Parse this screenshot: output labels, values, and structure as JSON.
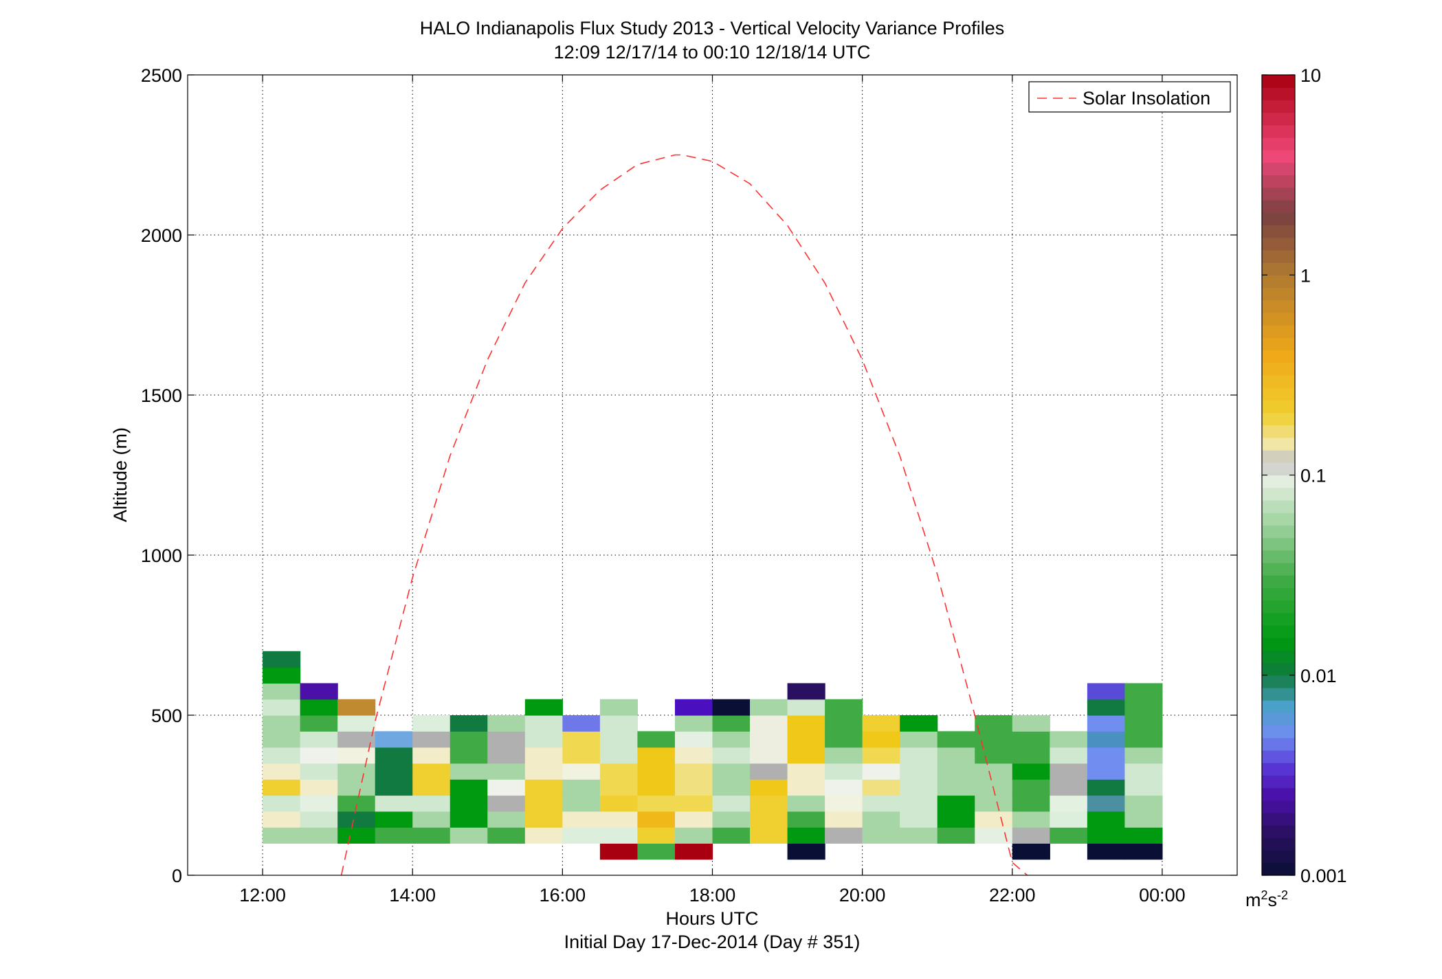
{
  "chart_data": {
    "type": "heatmap",
    "title": "HALO Indianapolis Flux Study 2013 - Vertical Velocity Variance Profiles",
    "subtitle": "12:09 12/17/14 to 00:10 12/18/14  UTC",
    "xlabel": "Hours UTC",
    "xlabel2": "Initial Day 17-Dec-2014 (Day # 351)",
    "ylabel": "Altitude (m)",
    "xlim": [
      11.0,
      25.0
    ],
    "ylim": [
      0,
      2500
    ],
    "x_ticks": [
      12,
      14,
      16,
      18,
      20,
      22,
      24
    ],
    "x_tick_labels": [
      "12:00",
      "14:00",
      "16:00",
      "18:00",
      "20:00",
      "22:00",
      "00:00"
    ],
    "y_ticks": [
      0,
      500,
      1000,
      1500,
      2000,
      2500
    ],
    "y_tick_labels": [
      "0",
      "500",
      "1000",
      "1500",
      "2000",
      "2500"
    ],
    "grid": true,
    "colorbar": {
      "scale": "log",
      "range": [
        0.001,
        10
      ],
      "ticks": [
        0.001,
        0.01,
        0.1,
        1,
        10
      ],
      "tick_labels": [
        "0.001",
        "0.01",
        "0.1",
        "1",
        "10"
      ],
      "unit_base": "m",
      "unit_exp1": "2",
      "unit_mid": "s",
      "unit_exp2": "-2",
      "stops": [
        {
          "v": 0.001,
          "c": "#0a0f35"
        },
        {
          "v": 0.0016,
          "c": "#2a1060"
        },
        {
          "v": 0.0025,
          "c": "#4a10a8"
        },
        {
          "v": 0.0035,
          "c": "#5a38d8"
        },
        {
          "v": 0.005,
          "c": "#6f8ef0"
        },
        {
          "v": 0.007,
          "c": "#4aa0c8"
        },
        {
          "v": 0.01,
          "c": "#107a40"
        },
        {
          "v": 0.015,
          "c": "#009a10"
        },
        {
          "v": 0.03,
          "c": "#40aa45"
        },
        {
          "v": 0.06,
          "c": "#a6d6a6"
        },
        {
          "v": 0.1,
          "c": "#eef2ea"
        },
        {
          "v": 0.118,
          "c": "#b0b0b0"
        },
        {
          "v": 0.13,
          "c": "#f2ecc8"
        },
        {
          "v": 0.2,
          "c": "#f0d030"
        },
        {
          "v": 0.4,
          "c": "#f0a818"
        },
        {
          "v": 1,
          "c": "#b07a30"
        },
        {
          "v": 2,
          "c": "#7a4040"
        },
        {
          "v": 4,
          "c": "#f04878"
        },
        {
          "v": 10,
          "c": "#a80010"
        }
      ]
    },
    "legend": {
      "position": "top-right",
      "entries": [
        "Solar Insolation"
      ]
    },
    "series": [
      {
        "name": "Solar Insolation",
        "style": "dashed",
        "color": "#ff3030",
        "x": [
          13.05,
          13.5,
          14.0,
          14.5,
          15.0,
          15.5,
          16.0,
          16.5,
          17.0,
          17.5,
          17.6,
          18.0,
          18.5,
          19.0,
          19.5,
          20.0,
          20.5,
          21.0,
          21.5,
          22.0,
          22.2
        ],
        "y": [
          0,
          480,
          930,
          1310,
          1610,
          1850,
          2020,
          2140,
          2220,
          2250,
          2250,
          2230,
          2160,
          2030,
          1850,
          1610,
          1310,
          940,
          500,
          40,
          0
        ]
      }
    ],
    "cell_width_hours": 0.5,
    "cell_height_m": 50,
    "columns": [
      {
        "x": 12.25,
        "z0": 100,
        "cells": [
          "#a6d6a6",
          "#f2ecc8",
          "#cfe8cf",
          "#f0d030",
          "#f2ecc8",
          "#cfe8cf",
          "#a6d6a6",
          "#a6d6a6",
          "#cfe8cf",
          "#a6d6a6",
          "#009a10",
          "#107a40"
        ]
      },
      {
        "x": 12.75,
        "z0": 100,
        "cells": [
          "#a6d6a6",
          "#cfe8cf",
          "#e4f0e2",
          "#f2ecc8",
          "#cfe8cf",
          "#eef2ea",
          "#cfe8cf",
          "#40aa45",
          "#009a10",
          "#4a10a8"
        ]
      },
      {
        "x": 13.25,
        "z0": 100,
        "cells": [
          "#009a10",
          "#107a40",
          "#40aa45",
          "#a6d6a6",
          "#a6d6a6",
          "#f2f2e0",
          "#b0b0b0",
          "#dceedc",
          "#c08a30"
        ]
      },
      {
        "x": 13.75,
        "z0": 100,
        "cells": [
          "#40aa45",
          "#009a10",
          "#cfe8cf",
          "#107a40",
          "#107a40",
          "#107a40",
          "#6fa8e0"
        ]
      },
      {
        "x": 14.25,
        "z0": 100,
        "cells": [
          "#40aa45",
          "#a6d6a6",
          "#cfe8cf",
          "#f0d030",
          "#f0d030",
          "#f2ecc8",
          "#b0b0b0",
          "#dceedc"
        ]
      },
      {
        "x": 14.75,
        "z0": 100,
        "cells": [
          "#a6d6a6",
          "#009a10",
          "#009a10",
          "#009a10",
          "#a6d6a6",
          "#40aa45",
          "#40aa45",
          "#107a40"
        ]
      },
      {
        "x": 15.25,
        "z0": 100,
        "cells": [
          "#40aa45",
          "#a6d6a6",
          "#b0b0b0",
          "#eef2ea",
          "#a6d6a6",
          "#b0b0b0",
          "#b0b0b0",
          "#a6d6a6"
        ]
      },
      {
        "x": 15.75,
        "z0": 100,
        "cells": [
          "#f2ecc8",
          "#f0d030",
          "#f0d030",
          "#f0d030",
          "#f2ecc8",
          "#f2ecc8",
          "#cfe8cf",
          "#cfe8cf",
          "#009a10"
        ]
      },
      {
        "x": 16.25,
        "z0": 100,
        "cells": [
          "#dceedc",
          "#f2ecc8",
          "#a6d6a6",
          "#a6d6a6",
          "#f2f2e0",
          "#f0d850",
          "#f0d850",
          "#6f78e8"
        ]
      },
      {
        "x": 16.75,
        "z0": 50,
        "cells": [
          "#a80010",
          "#dceedc",
          "#f2ecc8",
          "#f0d030",
          "#f0d850",
          "#f0d850",
          "#cfe8cf",
          "#cfe8cf",
          "#cfe8cf",
          "#a6d6a6"
        ]
      },
      {
        "x": 17.25,
        "z0": 50,
        "cells": [
          "#40aa45",
          "#f0d030",
          "#f0b818",
          "#f0d850",
          "#f0c818",
          "#f0c818",
          "#f0c818",
          "#40aa45"
        ]
      },
      {
        "x": 17.75,
        "z0": 50,
        "cells": [
          "#a80010",
          "#a6d6a6",
          "#f2ecc8",
          "#f0d850",
          "#f0e080",
          "#f0e080",
          "#f2ecc8",
          "#e4f0e2",
          "#a6d6a6",
          "#4a10c0"
        ]
      },
      {
        "x": 18.25,
        "z0": 100,
        "cells": [
          "#40aa45",
          "#a6d6a6",
          "#cfe8cf",
          "#a6d6a6",
          "#a6d6a6",
          "#cfe8cf",
          "#a6d6a6",
          "#40aa45",
          "#0a0f35"
        ]
      },
      {
        "x": 18.75,
        "z0": 100,
        "cells": [
          "#f0d030",
          "#f0d030",
          "#f0d030",
          "#f0c818",
          "#b0b0b0",
          "#eeeee0",
          "#eeeee0",
          "#eeeee0",
          "#a6d6a6"
        ]
      },
      {
        "x": 19.25,
        "z0": 50,
        "cells": [
          "#0a0f35",
          "#009a10",
          "#40aa45",
          "#a6d6a6",
          "#f2ecc8",
          "#f2ecc8",
          "#f0c818",
          "#f0c818",
          "#f0c818",
          "#cfe8cf",
          "#2a1060"
        ]
      },
      {
        "x": 19.75,
        "z0": 100,
        "cells": [
          "#b0b0b0",
          "#f2ecc8",
          "#f2f2e0",
          "#eef2ea",
          "#cfe8cf",
          "#a6d6a6",
          "#40aa45",
          "#40aa45",
          "#40aa45"
        ]
      },
      {
        "x": 20.25,
        "z0": 100,
        "cells": [
          "#a6d6a6",
          "#a6d6a6",
          "#cfe8cf",
          "#f0e080",
          "#eef2ea",
          "#f0d850",
          "#f0c818",
          "#f0d030"
        ]
      },
      {
        "x": 20.75,
        "z0": 100,
        "cells": [
          "#a6d6a6",
          "#cfe8cf",
          "#cfe8cf",
          "#cfe8cf",
          "#cfe8cf",
          "#cfe8cf",
          "#a6d6a6",
          "#009a10"
        ]
      },
      {
        "x": 21.25,
        "z0": 100,
        "cells": [
          "#40aa45",
          "#009a10",
          "#009a10",
          "#a6d6a6",
          "#a6d6a6",
          "#a6d6a6",
          "#40aa45"
        ]
      },
      {
        "x": 21.75,
        "z0": 100,
        "cells": [
          "#e4f0e2",
          "#f2ecc8",
          "#a6d6a6",
          "#a6d6a6",
          "#a6d6a6",
          "#40aa45",
          "#40aa45",
          "#40aa45"
        ]
      },
      {
        "x": 22.25,
        "z0": 50,
        "cells": [
          "#0a0f35",
          "#b0b0b0",
          "#a6d6a6",
          "#40aa45",
          "#40aa45",
          "#009a10",
          "#40aa45",
          "#40aa45",
          "#a6d6a6"
        ]
      },
      {
        "x": 22.75,
        "z0": 100,
        "cells": [
          "#40aa45",
          "#dceedc",
          "#e4f0e2",
          "#b0b0b0",
          "#b0b0b0",
          "#cfe8cf",
          "#a6d6a6"
        ]
      },
      {
        "x": 23.25,
        "z0": 50,
        "cells": [
          "#0a0f35",
          "#009a10",
          "#009a10",
          "#4a90a0",
          "#107a40",
          "#6f8ef0",
          "#6f8ef0",
          "#4a90c0",
          "#6f8ef0",
          "#107a40",
          "#5a4ad8"
        ]
      },
      {
        "x": 23.75,
        "z0": 50,
        "cells": [
          "#0a0f35",
          "#009a10",
          "#a6d6a6",
          "#a6d6a6",
          "#cfe8cf",
          "#cfe8cf",
          "#a6d6a6",
          "#40aa45",
          "#40aa45",
          "#40aa45",
          "#40aa45"
        ]
      }
    ]
  }
}
